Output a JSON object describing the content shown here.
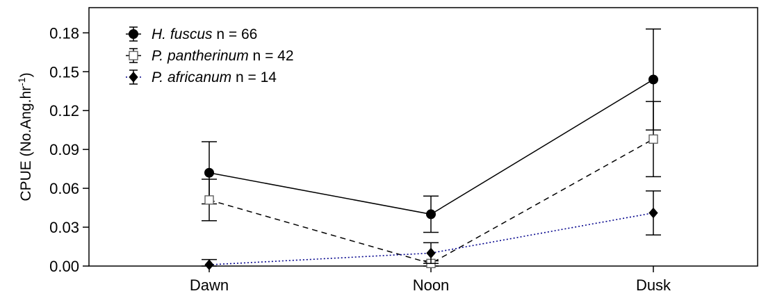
{
  "chart_data": {
    "type": "line",
    "categories": [
      "Dawn",
      "Noon",
      "Dusk"
    ],
    "ylabel": "CPUE (No.Ang.hr",
    "ylabel_sup": "-1",
    "ylabel_close": ")",
    "ylim": [
      0,
      0.195
    ],
    "yticks": [
      0.0,
      0.03,
      0.06,
      0.09,
      0.12,
      0.15,
      0.18
    ],
    "ytick_labels": [
      "0.00",
      "0.03",
      "0.06",
      "0.09",
      "0.12",
      "0.15",
      "0.18"
    ],
    "grid": false,
    "legend_position": "top-left",
    "series": [
      {
        "species": "H. fuscus",
        "n_text": " n = 66",
        "values": [
          0.072,
          0.04,
          0.144
        ],
        "errors": [
          0.024,
          0.014,
          0.039
        ],
        "marker": "filled-circle",
        "line_style": "solid",
        "color": "#000000"
      },
      {
        "species": "P. pantherinum",
        "n_text": " n = 42",
        "values": [
          0.051,
          0.002,
          0.098
        ],
        "errors": [
          0.016,
          0.002,
          0.029
        ],
        "marker": "open-square",
        "line_style": "dashed",
        "color": "#000000"
      },
      {
        "species": "P. africanum",
        "n_text": " n = 14",
        "values": [
          0.001,
          0.01,
          0.041
        ],
        "errors": [
          0.004,
          0.008,
          0.017
        ],
        "marker": "filled-diamond",
        "line_style": "dotted",
        "color": "#00008b"
      }
    ]
  }
}
